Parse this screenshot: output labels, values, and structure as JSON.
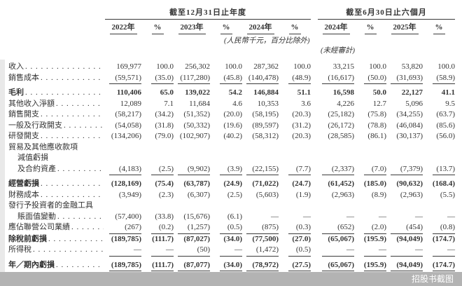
{
  "page": {
    "watermark": "招股书截图"
  },
  "colors": {
    "text": "#333333",
    "rule": "#3a3a3a",
    "watermark_bar": "#b3b3b3",
    "watermark_text": "#ffffff",
    "left_strip": "#e9e9e9"
  },
  "table": {
    "groups": [
      {
        "title": "截至12月31日止年度",
        "cols": [
          "2022年",
          "%",
          "2023年",
          "%",
          "2024年",
          "%"
        ]
      },
      {
        "title": "截至6月30日止六個月",
        "cols": [
          "2024年",
          "%",
          "2025年",
          "%"
        ]
      }
    ],
    "notes": [
      "(人民幣千元，百分比除外)",
      "(未經審計)"
    ],
    "rows": [
      {
        "label": "收入",
        "values": [
          "169,977",
          "100.0",
          "256,302",
          "100.0",
          "287,362",
          "100.0",
          "33,215",
          "100.0",
          "53,820",
          "100.0"
        ]
      },
      {
        "label": "銷售成本",
        "rule": "single",
        "values": [
          "(59,571)",
          "(35.0)",
          "(117,280)",
          "(45.8)",
          "(140,478)",
          "(48.9)",
          "(16,617)",
          "(50.0)",
          "(31,693)",
          "(58.9)"
        ]
      },
      {
        "label": "毛利",
        "bold": true,
        "gap": 5,
        "values": [
          "110,406",
          "65.0",
          "139,022",
          "54.2",
          "146,884",
          "51.1",
          "16,598",
          "50.0",
          "22,127",
          "41.1"
        ]
      },
      {
        "label": "其他收入淨額",
        "values": [
          "12,089",
          "7.1",
          "11,684",
          "4.6",
          "10,353",
          "3.6",
          "4,226",
          "12.7",
          "5,096",
          "9.5"
        ]
      },
      {
        "label": "銷售開支",
        "values": [
          "(58,217)",
          "(34.2)",
          "(51,352)",
          "(20.0)",
          "(58,195)",
          "(20.3)",
          "(25,182)",
          "(75.8)",
          "(34,255)",
          "(63.7)"
        ]
      },
      {
        "label": "一般及行政開支",
        "values": [
          "(54,058)",
          "(31.8)",
          "(50,332)",
          "(19.6)",
          "(89,597)",
          "(31.2)",
          "(26,172)",
          "(78.8)",
          "(46,084)",
          "(85.6)"
        ]
      },
      {
        "label": "研發開支",
        "values": [
          "(134,206)",
          "(79.0)",
          "(102,907)",
          "(40.2)",
          "(58,312)",
          "(20.3)",
          "(28,585)",
          "(86.1)",
          "(30,137)",
          "(56.0)"
        ]
      },
      {
        "pre": [
          "貿易及其他應收款項",
          "減值虧損"
        ],
        "pre_indent": [
          0,
          1
        ],
        "label": "及合約資產",
        "indent": 1,
        "rule": "single",
        "values": [
          "(4,183)",
          "(2.5)",
          "(9,902)",
          "(3.9)",
          "(22,155)",
          "(7.7)",
          "(2,337)",
          "(7.0)",
          "(7,379)",
          "(13.7)"
        ]
      },
      {
        "label": "經營虧損",
        "bold": true,
        "gap": 5,
        "values": [
          "(128,169)",
          "(75.4)",
          "(63,787)",
          "(24.9)",
          "(71,022)",
          "(24.7)",
          "(61,452)",
          "(185.0)",
          "(90,632)",
          "(168.4)"
        ]
      },
      {
        "label": "財務成本",
        "values": [
          "(3,949)",
          "(2.3)",
          "(6,307)",
          "(2.5)",
          "(5,603)",
          "(1.9)",
          "(2,963)",
          "(8.9)",
          "(2,963)",
          "(5.5)"
        ]
      },
      {
        "pre": [
          "發行予投資者的金融工具"
        ],
        "pre_indent": [
          0
        ],
        "label": "賬面值變動",
        "indent": 1,
        "values": [
          "(57,400)",
          "(33.8)",
          "(15,676)",
          "(6.1)",
          "—",
          "—",
          "—",
          "—",
          "—",
          "—"
        ]
      },
      {
        "label": "應佔聯營公司業績",
        "rule": "single",
        "values": [
          "(267)",
          "(0.2)",
          "(1,257)",
          "(0.5)",
          "(875)",
          "(0.3)",
          "(652)",
          "(2.0)",
          "(454)",
          "(0.8)"
        ]
      },
      {
        "label": "除稅前虧損",
        "bold": true,
        "values": [
          "(189,785)",
          "(111.7)",
          "(87,027)",
          "(34.0)",
          "(77,500)",
          "(27.0)",
          "(65,067)",
          "(195.9)",
          "(94,049)",
          "(174.7)"
        ]
      },
      {
        "label": "所得稅",
        "rule": "single",
        "values": [
          "—",
          "—",
          "(50)",
          "—",
          "(1,472)",
          "(0.5)",
          "—",
          "—",
          "—",
          "—"
        ]
      },
      {
        "label": "年／期內虧損",
        "bold": true,
        "rule": "double",
        "gap": 5,
        "values": [
          "(189,785)",
          "(111.7)",
          "(87,077)",
          "(34.0)",
          "(78,972)",
          "(27.5)",
          "(65,067)",
          "(195.9)",
          "(94,049)",
          "(174.7)"
        ]
      }
    ]
  }
}
